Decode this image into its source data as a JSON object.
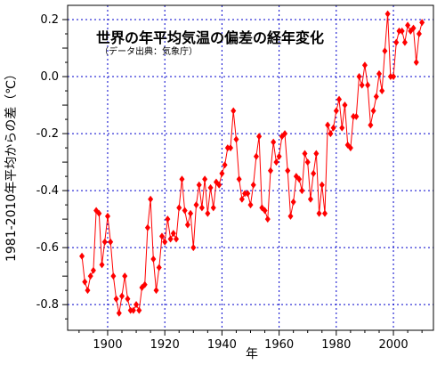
{
  "chart_data": {
    "type": "line",
    "title": "世界の年平均気温の偏差の経年変化",
    "subtitle": "（データ出典：気象庁）",
    "xlabel": "年",
    "ylabel": "1981-2010年平均からの差（℃）",
    "xlim": [
      1886,
      2014
    ],
    "ylim": [
      -0.89,
      0.25
    ],
    "x_ticks": [
      1900,
      1920,
      1940,
      1960,
      1980,
      2000
    ],
    "y_ticks": [
      -0.8,
      -0.6,
      -0.4,
      -0.2,
      0.0,
      0.2
    ],
    "y_tick_labels": [
      "-0.8",
      "-0.6",
      "-0.4",
      "-0.2",
      "0.0",
      "0.2"
    ],
    "grid": true,
    "colors": {
      "series": "#ff0000",
      "grid": "#0000cc"
    },
    "series": [
      {
        "x": [
          1891,
          1892,
          1893,
          1894,
          1895,
          1896,
          1897,
          1898,
          1899,
          1900,
          1901,
          1902,
          1903,
          1904,
          1905,
          1906,
          1907,
          1908,
          1909,
          1910,
          1911,
          1912,
          1913,
          1914,
          1915,
          1916,
          1917,
          1918,
          1919,
          1920,
          1921,
          1922,
          1923,
          1924,
          1925,
          1926,
          1927,
          1928,
          1929,
          1930,
          1931,
          1932,
          1933,
          1934,
          1935,
          1936,
          1937,
          1938,
          1939,
          1940,
          1941,
          1942,
          1943,
          1944,
          1945,
          1946,
          1947,
          1948,
          1949,
          1950,
          1951,
          1952,
          1953,
          1954,
          1955,
          1956,
          1957,
          1958,
          1959,
          1960,
          1961,
          1962,
          1963,
          1964,
          1965,
          1966,
          1967,
          1968,
          1969,
          1970,
          1971,
          1972,
          1973,
          1974,
          1975,
          1976,
          1977,
          1978,
          1979,
          1980,
          1981,
          1982,
          1983,
          1984,
          1985,
          1986,
          1987,
          1988,
          1989,
          1990,
          1991,
          1992,
          1993,
          1994,
          1995,
          1996,
          1997,
          1998,
          1999,
          2000,
          2001,
          2002,
          2003,
          2004,
          2005,
          2006,
          2007,
          2008,
          2009,
          2010
        ],
        "values": [
          -0.63,
          -0.72,
          -0.75,
          -0.7,
          -0.68,
          -0.47,
          -0.48,
          -0.66,
          -0.58,
          -0.49,
          -0.58,
          -0.7,
          -0.78,
          -0.83,
          -0.77,
          -0.7,
          -0.78,
          -0.82,
          -0.82,
          -0.8,
          -0.82,
          -0.74,
          -0.73,
          -0.53,
          -0.43,
          -0.64,
          -0.75,
          -0.67,
          -0.56,
          -0.58,
          -0.5,
          -0.57,
          -0.55,
          -0.57,
          -0.46,
          -0.36,
          -0.47,
          -0.52,
          -0.48,
          -0.6,
          -0.45,
          -0.38,
          -0.46,
          -0.36,
          -0.48,
          -0.39,
          -0.46,
          -0.37,
          -0.38,
          -0.34,
          -0.31,
          -0.25,
          -0.25,
          -0.12,
          -0.22,
          -0.36,
          -0.43,
          -0.41,
          -0.41,
          -0.45,
          -0.38,
          -0.28,
          -0.21,
          -0.46,
          -0.47,
          -0.5,
          -0.33,
          -0.23,
          -0.3,
          -0.28,
          -0.21,
          -0.2,
          -0.33,
          -0.49,
          -0.44,
          -0.35,
          -0.36,
          -0.4,
          -0.27,
          -0.3,
          -0.43,
          -0.34,
          -0.27,
          -0.48,
          -0.38,
          -0.48,
          -0.17,
          -0.2,
          -0.18,
          -0.12,
          -0.08,
          -0.18,
          -0.1,
          -0.24,
          -0.25,
          -0.14,
          -0.14,
          -0.0,
          -0.03,
          0.04,
          -0.03,
          -0.17,
          -0.12,
          -0.07,
          0.01,
          -0.05,
          0.09,
          0.22,
          0.0,
          0.0,
          0.12,
          0.16,
          0.16,
          0.12,
          0.18,
          0.16,
          0.17,
          0.05,
          0.15,
          0.19
        ]
      }
    ]
  }
}
